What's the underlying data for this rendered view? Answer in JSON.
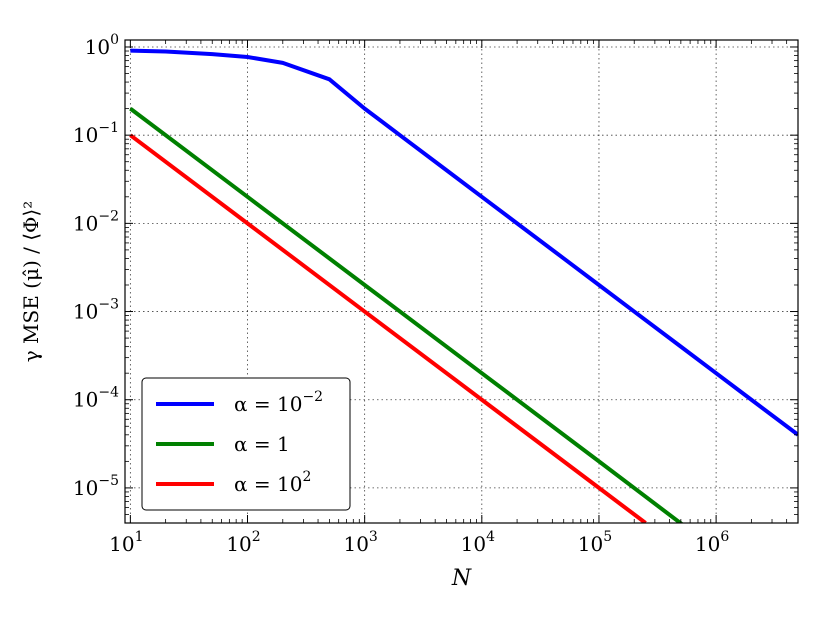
{
  "chart_data": {
    "type": "line",
    "xlabel": "N",
    "ylabel": "γ MSE (μ̂) / ⟨Φ⟩²",
    "x_scale": "log",
    "y_scale": "log",
    "xlim": [
      9,
      5000000
    ],
    "ylim": [
      4e-06,
      1.2
    ],
    "grid": true,
    "legend_position": "lower-left",
    "x_ticks": [
      {
        "base": "10",
        "exp": "1",
        "value": 10
      },
      {
        "base": "10",
        "exp": "2",
        "value": 100
      },
      {
        "base": "10",
        "exp": "3",
        "value": 1000
      },
      {
        "base": "10",
        "exp": "4",
        "value": 10000
      },
      {
        "base": "10",
        "exp": "5",
        "value": 100000
      },
      {
        "base": "10",
        "exp": "6",
        "value": 1000000
      }
    ],
    "y_ticks": [
      {
        "base": "10",
        "exp": "0",
        "value": 1
      },
      {
        "base": "10",
        "exp": "−1",
        "value": 0.1
      },
      {
        "base": "10",
        "exp": "−2",
        "value": 0.01
      },
      {
        "base": "10",
        "exp": "−3",
        "value": 0.001
      },
      {
        "base": "10",
        "exp": "−4",
        "value": 0.0001
      },
      {
        "base": "10",
        "exp": "−5",
        "value": 1e-05
      }
    ],
    "series": [
      {
        "name": "α = 10⁻²",
        "label_main": "α = 10",
        "label_sup": "−2",
        "color": "#0000ff",
        "x": [
          10,
          20,
          50,
          100,
          200,
          500,
          1000,
          2000,
          5000,
          10000,
          20000,
          50000,
          100000,
          200000,
          500000,
          1000000,
          2000000,
          5000000
        ],
        "y": [
          0.91,
          0.89,
          0.83,
          0.77,
          0.66,
          0.43,
          0.2,
          0.1,
          0.04,
          0.02,
          0.01,
          0.004,
          0.002,
          0.001,
          0.0004,
          0.0002,
          0.0001,
          4e-05
        ]
      },
      {
        "name": "α = 1",
        "label_main": "α = 1",
        "label_sup": "",
        "color": "#008000",
        "x": [
          10,
          100,
          1000,
          10000,
          100000,
          550000
        ],
        "y": [
          0.2,
          0.02,
          0.002,
          0.0002,
          2e-05,
          3.6e-06
        ]
      },
      {
        "name": "α = 10²",
        "label_main": "α = 10",
        "label_sup": "2",
        "color": "#ff0000",
        "x": [
          10,
          100,
          1000,
          10000,
          100000,
          250000
        ],
        "y": [
          0.1,
          0.01,
          0.001,
          0.0001,
          1e-05,
          4e-06
        ]
      }
    ]
  }
}
